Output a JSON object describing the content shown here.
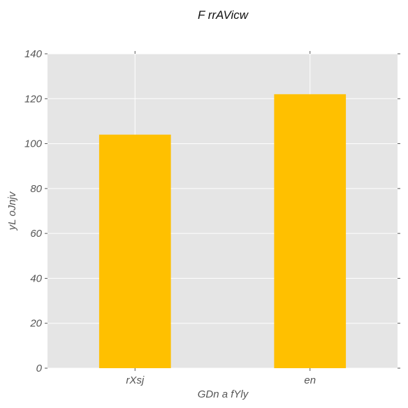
{
  "chart_data": {
    "type": "bar",
    "title": "F rrAVicw",
    "xlabel": "GDn a fYly",
    "ylabel": "yL oJnjv",
    "categories": [
      "rXsj",
      "en"
    ],
    "values": [
      104,
      122
    ],
    "ylim": [
      0,
      140
    ],
    "yticks": [
      0,
      20,
      40,
      60,
      80,
      100,
      120,
      140
    ],
    "grid": true,
    "colors": {
      "bar": "#FFC000",
      "plot_background": "#E5E5E5",
      "grid": "#FFFFFF",
      "text": "#555555"
    }
  }
}
